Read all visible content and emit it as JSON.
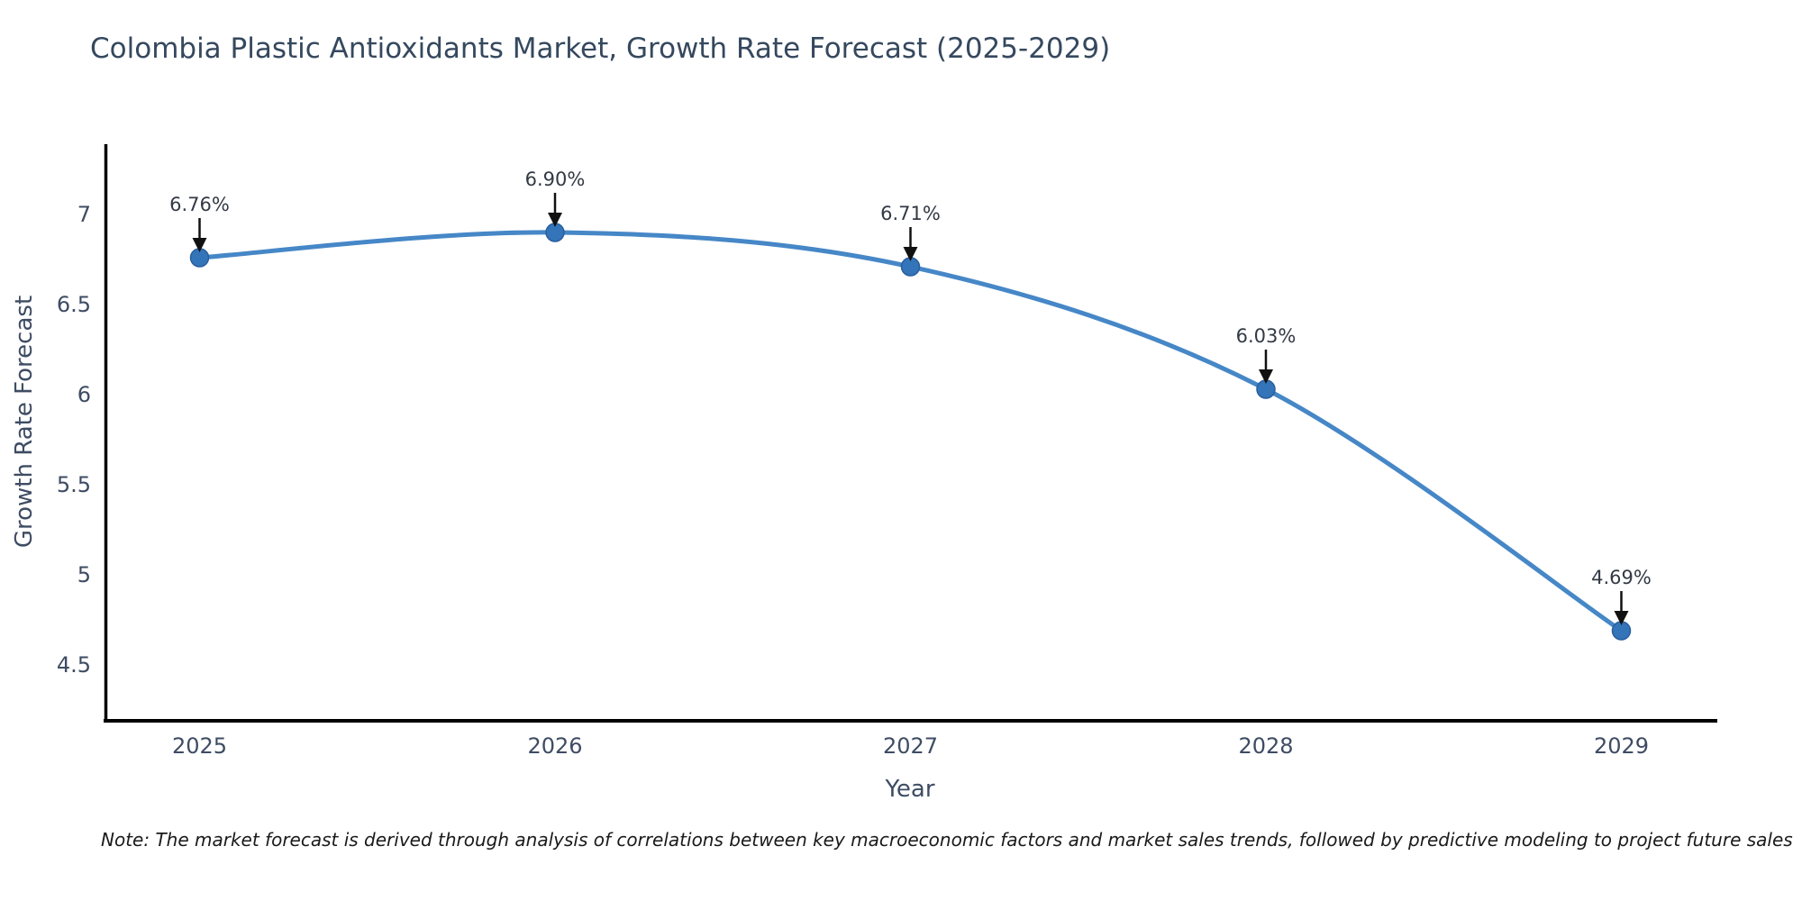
{
  "title": "Colombia Plastic Antioxidants Market, Growth Rate Forecast (2025-2029)",
  "note": "Note: The market forecast is derived through analysis of correlations between key macroeconomic factors and market sales trends, followed by predictive modeling to project future sales",
  "chart_data": {
    "type": "line",
    "line_shape": "spline",
    "title": "Colombia Plastic Antioxidants Market, Growth Rate Forecast (2025-2029)",
    "xlabel": "Year",
    "ylabel": "Growth Rate Forecast",
    "x": [
      2025,
      2026,
      2027,
      2028,
      2029
    ],
    "values": [
      6.76,
      6.9,
      6.71,
      6.03,
      4.69
    ],
    "point_labels": [
      "6.76%",
      "6.90%",
      "6.71%",
      "6.03%",
      "4.69%"
    ],
    "x_tick_labels": [
      "2025",
      "2026",
      "2027",
      "2028",
      "2029"
    ],
    "y_ticks": [
      4.5,
      5,
      5.5,
      6,
      6.5,
      7
    ],
    "y_tick_labels": [
      "4.5",
      "5",
      "5.5",
      "6",
      "6.5",
      "7"
    ],
    "xlim": [
      2024.73,
      2029.27
    ],
    "ylim": [
      4.19,
      7.39
    ],
    "grid": false,
    "legend": false,
    "annotations_have_arrows": true,
    "colors": {
      "line": "#4687c7",
      "marker_fill": "#3474b8",
      "marker_edge": "#2a5f9e",
      "axis_line": "#000000",
      "tick_label": "#3e4c63",
      "annotation_text": "#333a45",
      "annotation_arrow": "#111111",
      "title_text": "#35485e"
    }
  }
}
